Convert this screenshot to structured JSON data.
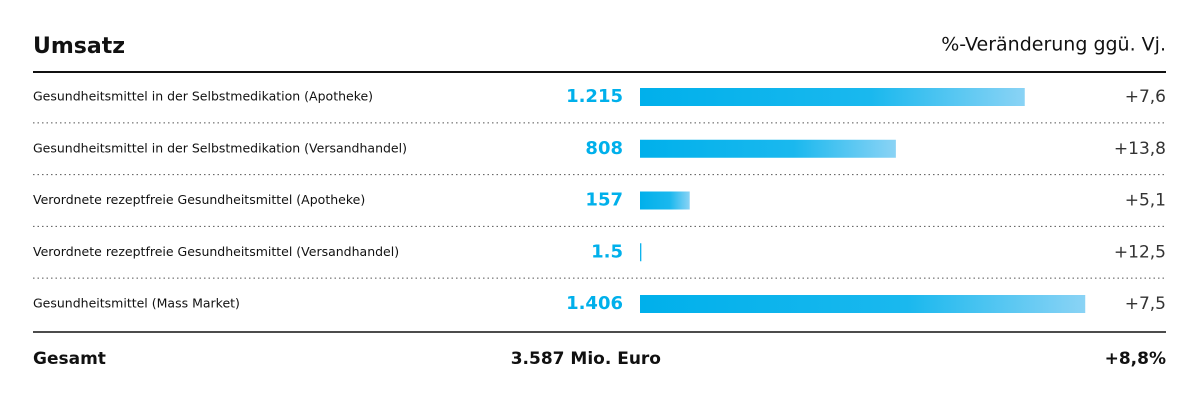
{
  "chart_data": {
    "type": "bar",
    "title": "Umsatz",
    "subtitle": "%-Veränderung ggü. Vj.",
    "categories": [
      "Gesundheitsmittel in der Selbstmedikation (Apotheke)",
      "Gesundheitsmittel in der Selbstmedikation (Versandhandel)",
      "Verordnete rezeptfreie Gesundheitsmittel (Apotheke)",
      "Verordnete rezeptfreie Gesundheitsmittel (Versandhandel)",
      "Gesundheitsmittel (Mass Market)"
    ],
    "values": [
      1215,
      808,
      157,
      1.5,
      1406
    ],
    "value_labels": [
      "1.215",
      "808",
      "157",
      "1.5",
      "1.406"
    ],
    "change_labels": [
      "+7,6",
      "+13,8",
      "+5,1",
      "+12,5",
      "+7,5"
    ],
    "color": "#00b0eb",
    "xlim": [
      0,
      1500
    ],
    "total": {
      "label": "Gesamt",
      "value": "3.587 Mio. Euro",
      "change": "+8,8%"
    }
  }
}
